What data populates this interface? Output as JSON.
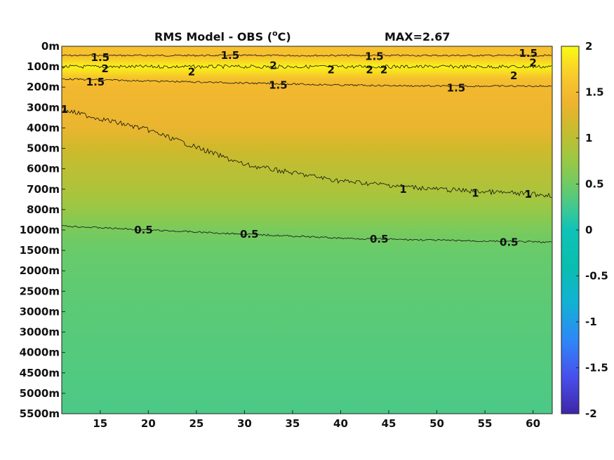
{
  "chart_data": {
    "type": "heatmap",
    "title": "RMS Model - OBS (",
    "title_unit": "o",
    "title_tail": "C)",
    "max_text": "MAX=2.67",
    "xlim": [
      11,
      62
    ],
    "x_ticks": [
      15,
      20,
      25,
      30,
      35,
      40,
      45,
      50,
      55,
      60
    ],
    "y_tick_labels": [
      "0m",
      "100m",
      "200m",
      "300m",
      "400m",
      "500m",
      "600m",
      "700m",
      "800m",
      "1000m",
      "1500m",
      "2000m",
      "2500m",
      "3000m",
      "3000m",
      "4000m",
      "4500m",
      "5000m",
      "5500m"
    ],
    "color_limits": [
      -2,
      2
    ],
    "colorbar_ticks": [
      "2",
      "1.5",
      "1",
      "0.5",
      "0",
      "-0.5",
      "-1",
      "-1.5",
      "-2"
    ],
    "colormap": "parula",
    "depth_profile": [
      {
        "level": 0,
        "value": 1.6
      },
      {
        "level": 0.5,
        "value": 1.55
      },
      {
        "level": 1,
        "value": 1.95
      },
      {
        "level": 1.6,
        "value": 1.55
      },
      {
        "level": 2,
        "value": 1.45
      },
      {
        "level": 4,
        "value": 1.35
      },
      {
        "level": 5,
        "value": 1.15
      },
      {
        "level": 6,
        "value": 1.0
      },
      {
        "level": 7,
        "value": 0.9
      },
      {
        "level": 8,
        "value": 0.75
      },
      {
        "level": 9,
        "value": 0.55
      },
      {
        "level": 10,
        "value": 0.45
      },
      {
        "level": 12,
        "value": 0.4
      },
      {
        "level": 15,
        "value": 0.35
      },
      {
        "level": 18,
        "value": 0.3
      }
    ],
    "contours": [
      {
        "level": "1.5",
        "x": [
          11,
          20,
          30,
          40,
          50,
          62
        ],
        "depth_index": [
          0.45,
          0.45,
          0.45,
          0.45,
          0.45,
          0.45
        ]
      },
      {
        "level": "2",
        "x": [
          11,
          20,
          30,
          40,
          50,
          62
        ],
        "depth_index": [
          1.0,
          1.0,
          1.0,
          1.0,
          1.0,
          1.0
        ]
      },
      {
        "level": "1.5",
        "x": [
          11,
          20,
          30,
          40,
          50,
          62
        ],
        "depth_index": [
          1.6,
          1.7,
          1.8,
          1.9,
          1.95,
          1.95
        ]
      },
      {
        "level": "1",
        "x": [
          11,
          20,
          30,
          40,
          50,
          62
        ],
        "depth_index": [
          3.1,
          4.1,
          5.8,
          6.6,
          7.0,
          7.3
        ]
      },
      {
        "level": "0.5",
        "x": [
          11,
          20,
          30,
          40,
          50,
          62
        ],
        "depth_index": [
          8.8,
          9.0,
          9.2,
          9.4,
          9.5,
          9.6
        ]
      }
    ],
    "contour_labels": [
      {
        "text": "1.5",
        "x": 15,
        "depth_index": 0.55
      },
      {
        "text": "1.5",
        "x": 28.5,
        "depth_index": 0.45
      },
      {
        "text": "1.5",
        "x": 43.5,
        "depth_index": 0.5
      },
      {
        "text": "1.5",
        "x": 59.5,
        "depth_index": 0.35
      },
      {
        "text": "2",
        "x": 15.5,
        "depth_index": 1.1
      },
      {
        "text": "2",
        "x": 24.5,
        "depth_index": 1.25
      },
      {
        "text": "2",
        "x": 33,
        "depth_index": 0.95
      },
      {
        "text": "2",
        "x": 39,
        "depth_index": 1.15
      },
      {
        "text": "2",
        "x": 43,
        "depth_index": 1.15
      },
      {
        "text": "2",
        "x": 44.5,
        "depth_index": 1.15
      },
      {
        "text": "2",
        "x": 60,
        "depth_index": 0.8
      },
      {
        "text": "2",
        "x": 58,
        "depth_index": 1.45
      },
      {
        "text": "1.5",
        "x": 14.5,
        "depth_index": 1.75
      },
      {
        "text": "1.5",
        "x": 33.5,
        "depth_index": 1.9
      },
      {
        "text": "1.5",
        "x": 52,
        "depth_index": 2.05
      },
      {
        "text": "1",
        "x": 11.3,
        "depth_index": 3.1
      },
      {
        "text": "1",
        "x": 59.5,
        "depth_index": 7.25
      },
      {
        "text": "1",
        "x": 54,
        "depth_index": 7.2
      },
      {
        "text": "1",
        "x": 46.5,
        "depth_index": 7.0
      },
      {
        "text": "0.5",
        "x": 19.5,
        "depth_index": 9.0
      },
      {
        "text": "0.5",
        "x": 30.5,
        "depth_index": 9.2
      },
      {
        "text": "0.5",
        "x": 44,
        "depth_index": 9.45
      },
      {
        "text": "0.5",
        "x": 57.5,
        "depth_index": 9.6
      }
    ]
  }
}
